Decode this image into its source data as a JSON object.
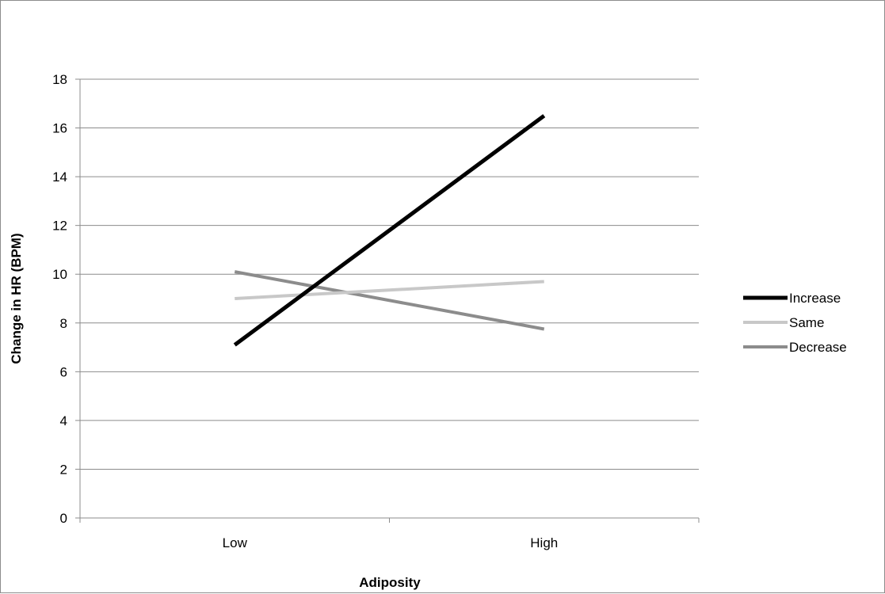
{
  "chart_data": {
    "type": "line",
    "title": "",
    "xlabel": "Adiposity",
    "ylabel": "Change in HR (BPM)",
    "categories": [
      "Low",
      "High"
    ],
    "ylim": [
      0,
      18
    ],
    "yticks": [
      0,
      2,
      4,
      6,
      8,
      10,
      12,
      14,
      16,
      18
    ],
    "grid": "horizontal",
    "legend_position": "right",
    "series": [
      {
        "name": "Increase",
        "values": [
          7.1,
          16.5
        ],
        "color": "#000000"
      },
      {
        "name": "Same",
        "values": [
          9.0,
          9.7
        ],
        "color": "#c8c8c8"
      },
      {
        "name": "Decrease",
        "values": [
          10.1,
          7.75
        ],
        "color": "#8c8c8c"
      }
    ]
  }
}
